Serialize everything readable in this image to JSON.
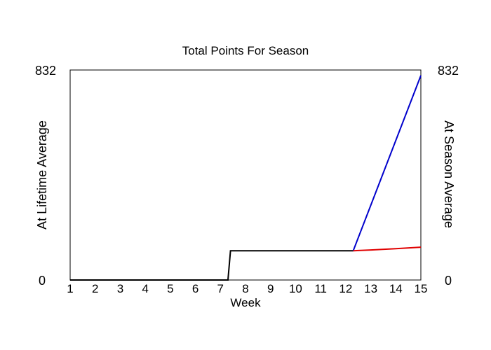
{
  "chart_data": {
    "type": "line",
    "title": "Total Points For Season",
    "xlabel": "Week",
    "ylabel_left": "At Lifetime Average",
    "ylabel_right": "At Season Average",
    "xlim": [
      1,
      15
    ],
    "ylim": [
      0,
      832
    ],
    "x_ticks": [
      "1",
      "2",
      "3",
      "4",
      "5",
      "6",
      "7",
      "8",
      "9",
      "10",
      "11",
      "12",
      "13",
      "14",
      "15"
    ],
    "y_ticks_left": [
      "0",
      "832"
    ],
    "y_ticks_right": [
      "0",
      "832"
    ],
    "grid": false,
    "colors": {
      "actual": "#000000",
      "lifetime": "#0000cc",
      "season": "#e00000"
    },
    "series": [
      {
        "key": "actual",
        "x": [
          1,
          7.3,
          7.4,
          12.3
        ],
        "y": [
          0,
          0,
          116,
          116
        ]
      },
      {
        "key": "lifetime",
        "x": [
          12.3,
          15
        ],
        "y": [
          116,
          810
        ]
      },
      {
        "key": "season",
        "x": [
          12.3,
          13,
          14,
          15
        ],
        "y": [
          116,
          119,
          124,
          130
        ]
      }
    ]
  }
}
